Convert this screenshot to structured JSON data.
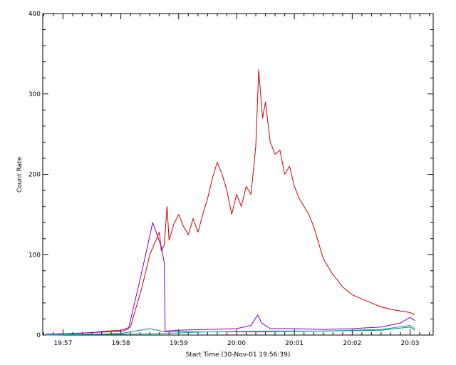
{
  "chart_data": {
    "type": "line",
    "title": "",
    "xlabel": "Start Time (30-Nov-01 19:56:39)",
    "ylabel": "Count Rate",
    "xlim": [
      "19:56:39",
      "20:03:24"
    ],
    "ylim": [
      0,
      400
    ],
    "grid": false,
    "x_ticks": [
      "19:57",
      "19:58",
      "19:59",
      "20:00",
      "20:01",
      "20:02",
      "20:03"
    ],
    "y_ticks": [
      0,
      100,
      200,
      300,
      400
    ],
    "series": [
      {
        "color": "#cc0000",
        "points": [
          [
            "19:56:42",
            1
          ],
          [
            "19:57:10",
            2
          ],
          [
            "19:57:30",
            3
          ],
          [
            "19:57:45",
            5
          ],
          [
            "19:58:00",
            6
          ],
          [
            "19:58:10",
            10
          ],
          [
            "19:58:22",
            60
          ],
          [
            "19:58:30",
            100
          ],
          [
            "19:58:40",
            128
          ],
          [
            "19:58:42",
            105
          ],
          [
            "19:58:45",
            112
          ],
          [
            "19:58:48",
            160
          ],
          [
            "19:58:50",
            118
          ],
          [
            "19:58:55",
            138
          ],
          [
            "19:59:00",
            150
          ],
          [
            "19:59:05",
            135
          ],
          [
            "19:59:10",
            125
          ],
          [
            "19:59:15",
            145
          ],
          [
            "19:59:20",
            128
          ],
          [
            "19:59:25",
            150
          ],
          [
            "19:59:30",
            170
          ],
          [
            "19:59:35",
            195
          ],
          [
            "19:59:40",
            215
          ],
          [
            "19:59:45",
            200
          ],
          [
            "19:59:50",
            180
          ],
          [
            "19:59:55",
            150
          ],
          [
            "20:00:00",
            175
          ],
          [
            "20:00:05",
            160
          ],
          [
            "20:00:10",
            185
          ],
          [
            "20:00:15",
            175
          ],
          [
            "20:00:20",
            235
          ],
          [
            "20:00:23",
            330
          ],
          [
            "20:00:27",
            270
          ],
          [
            "20:00:30",
            290
          ],
          [
            "20:00:35",
            240
          ],
          [
            "20:00:40",
            225
          ],
          [
            "20:00:45",
            230
          ],
          [
            "20:00:50",
            200
          ],
          [
            "20:00:55",
            210
          ],
          [
            "20:01:00",
            185
          ],
          [
            "20:01:05",
            170
          ],
          [
            "20:01:10",
            160
          ],
          [
            "20:01:15",
            150
          ],
          [
            "20:01:20",
            135
          ],
          [
            "20:01:25",
            115
          ],
          [
            "20:01:30",
            95
          ],
          [
            "20:01:35",
            85
          ],
          [
            "20:01:40",
            75
          ],
          [
            "20:01:45",
            68
          ],
          [
            "20:01:50",
            60
          ],
          [
            "20:01:55",
            55
          ],
          [
            "20:02:00",
            50
          ],
          [
            "20:02:10",
            45
          ],
          [
            "20:02:20",
            40
          ],
          [
            "20:02:30",
            35
          ],
          [
            "20:02:40",
            32
          ],
          [
            "20:02:50",
            30
          ],
          [
            "20:03:00",
            28
          ],
          [
            "20:03:05",
            25
          ]
        ]
      },
      {
        "color": "#7700cc",
        "points": [
          [
            "19:56:42",
            1
          ],
          [
            "19:57:10",
            2
          ],
          [
            "19:57:30",
            3
          ],
          [
            "19:57:45",
            4
          ],
          [
            "19:58:00",
            4
          ],
          [
            "19:58:08",
            8
          ],
          [
            "19:58:22",
            80
          ],
          [
            "19:58:33",
            140
          ],
          [
            "19:58:42",
            110
          ],
          [
            "19:58:45",
            90
          ],
          [
            "19:58:46",
            5
          ],
          [
            "19:59:00",
            6
          ],
          [
            "19:59:30",
            7
          ],
          [
            "20:00:00",
            8
          ],
          [
            "20:00:15",
            12
          ],
          [
            "20:00:22",
            25
          ],
          [
            "20:00:26",
            15
          ],
          [
            "20:00:35",
            8
          ],
          [
            "20:01:00",
            8
          ],
          [
            "20:01:30",
            7
          ],
          [
            "20:02:00",
            8
          ],
          [
            "20:02:30",
            10
          ],
          [
            "20:02:50",
            15
          ],
          [
            "20:03:00",
            22
          ],
          [
            "20:03:05",
            18
          ]
        ]
      },
      {
        "color": "#008888",
        "points": [
          [
            "19:56:42",
            0
          ],
          [
            "19:57:30",
            1
          ],
          [
            "19:58:00",
            2
          ],
          [
            "19:58:30",
            8
          ],
          [
            "19:58:46",
            4
          ],
          [
            "19:59:30",
            4
          ],
          [
            "20:00:30",
            4
          ],
          [
            "20:01:30",
            5
          ],
          [
            "20:02:30",
            6
          ],
          [
            "20:03:00",
            10
          ],
          [
            "20:03:05",
            6
          ]
        ]
      },
      {
        "color": "#00aa88",
        "points": [
          [
            "19:56:42",
            0
          ],
          [
            "19:57:30",
            1
          ],
          [
            "19:58:00",
            1
          ],
          [
            "19:58:45",
            2
          ],
          [
            "19:59:30",
            4
          ],
          [
            "20:00:30",
            5
          ],
          [
            "20:01:30",
            5
          ],
          [
            "20:02:30",
            7
          ],
          [
            "20:03:00",
            12
          ],
          [
            "20:03:05",
            8
          ]
        ]
      }
    ]
  }
}
